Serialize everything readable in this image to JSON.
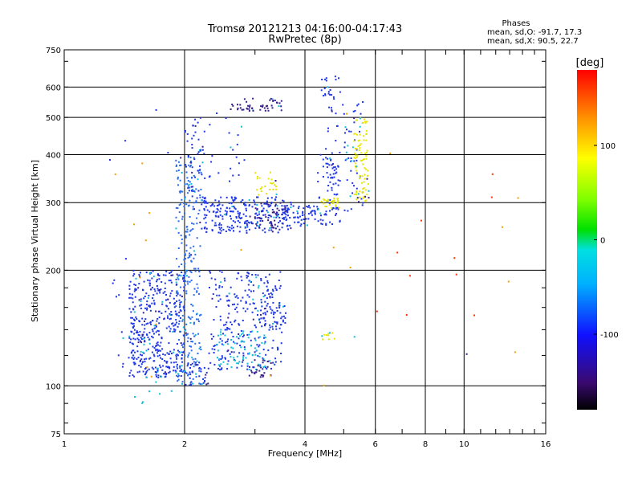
{
  "chart_data": {
    "type": "scatter",
    "title": "Tromsø 20121213 04:16:00-04:17:43",
    "subtitle": "RwPretec (8p)",
    "xlabel": "Frequency [MHz]",
    "ylabel": "Stationary phase Virtual Height [km]",
    "x_scale": "log",
    "y_scale": "log",
    "xlim": [
      1,
      16
    ],
    "ylim": [
      75,
      750
    ],
    "x_ticks": [
      1,
      2,
      4,
      6,
      8,
      10,
      16
    ],
    "y_ticks": [
      75,
      100,
      200,
      300,
      400,
      500,
      600,
      750
    ],
    "x_tick_labels": [
      "1",
      "2",
      "4",
      "6",
      "8",
      "10",
      "16"
    ],
    "y_tick_labels": [
      "75",
      "100",
      "200",
      "300",
      "400",
      "500",
      "600",
      "750"
    ],
    "grid": true,
    "stats": {
      "heading": "Phases",
      "line_o": "mean, sd,O: -91.7, 17.3",
      "line_x": "mean, sd,X:  90.5, 22.7"
    },
    "colorbar": {
      "label": "[deg]",
      "range": [
        -180,
        180
      ],
      "tick_values": [
        100,
        0,
        -100
      ],
      "tick_labels": [
        "100",
        "0",
        "-100"
      ]
    },
    "colors": {
      "deep": "#3a1e8a",
      "blue": "#1f36e6",
      "lightblue": "#2a6cf0",
      "cyan": "#10c0d8",
      "yellow": "#e6e600",
      "orange": "#f0a000",
      "red": "#ff3000"
    },
    "clusters": [
      {
        "f0": 1.45,
        "f1": 2.0,
        "h0": 105,
        "h1": 200,
        "n": 450,
        "c": "blue"
      },
      {
        "f0": 1.9,
        "f1": 2.2,
        "h0": 100,
        "h1": 400,
        "n": 260,
        "c": "lightblue"
      },
      {
        "f0": 2.0,
        "f1": 2.25,
        "h0": 300,
        "h1": 500,
        "n": 50,
        "c": "blue"
      },
      {
        "f0": 2.2,
        "f1": 3.7,
        "h0": 250,
        "h1": 310,
        "n": 260,
        "c": "blue"
      },
      {
        "f0": 3.0,
        "f1": 3.6,
        "h0": 255,
        "h1": 300,
        "n": 50,
        "c": "deep"
      },
      {
        "f0": 3.5,
        "f1": 4.4,
        "h0": 260,
        "h1": 300,
        "n": 70,
        "c": "blue"
      },
      {
        "f0": 4.3,
        "f1": 4.9,
        "h0": 260,
        "h1": 400,
        "n": 60,
        "c": "blue"
      },
      {
        "f0": 4.5,
        "f1": 5.6,
        "h0": 285,
        "h1": 560,
        "n": 80,
        "c": "blue"
      },
      {
        "f0": 5.3,
        "f1": 5.8,
        "h0": 300,
        "h1": 500,
        "n": 90,
        "c": "yellow"
      },
      {
        "f0": 4.4,
        "f1": 4.9,
        "h0": 290,
        "h1": 310,
        "n": 30,
        "c": "yellow"
      },
      {
        "f0": 3.0,
        "f1": 3.5,
        "h0": 310,
        "h1": 360,
        "n": 25,
        "c": "yellow"
      },
      {
        "f0": 2.6,
        "f1": 3.5,
        "h0": 520,
        "h1": 560,
        "n": 50,
        "c": "deep"
      },
      {
        "f0": 2.3,
        "f1": 2.8,
        "h0": 340,
        "h1": 500,
        "n": 18,
        "c": "blue"
      },
      {
        "f0": 4.4,
        "f1": 4.9,
        "h0": 560,
        "h1": 640,
        "n": 20,
        "c": "blue"
      },
      {
        "f0": 2.3,
        "f1": 3.5,
        "h0": 110,
        "h1": 200,
        "n": 250,
        "c": "blue"
      },
      {
        "f0": 2.4,
        "f1": 3.2,
        "h0": 110,
        "h1": 140,
        "n": 70,
        "c": "cyan"
      },
      {
        "f0": 2.9,
        "f1": 3.3,
        "h0": 105,
        "h1": 118,
        "n": 30,
        "c": "deep"
      },
      {
        "f0": 3.1,
        "f1": 3.6,
        "h0": 140,
        "h1": 180,
        "n": 60,
        "c": "blue"
      },
      {
        "f0": 2.0,
        "f1": 2.3,
        "h0": 100,
        "h1": 115,
        "n": 40,
        "c": "blue"
      },
      {
        "f0": 4.4,
        "f1": 4.8,
        "h0": 132,
        "h1": 138,
        "n": 10,
        "c": "yellow"
      },
      {
        "f0": 1.3,
        "f1": 1.5,
        "h0": 105,
        "h1": 240,
        "n": 12,
        "c": "blue"
      },
      {
        "f0": 1.5,
        "f1": 2.0,
        "h0": 90,
        "h1": 110,
        "n": 10,
        "c": "cyan"
      },
      {
        "f0": 1.25,
        "f1": 14.0,
        "h0": 90,
        "h1": 550,
        "n": 22,
        "c": "orange"
      },
      {
        "f0": 6.0,
        "f1": 12.0,
        "h0": 150,
        "h1": 370,
        "n": 10,
        "c": "red"
      },
      {
        "f0": 1.3,
        "f1": 3.0,
        "h0": 380,
        "h1": 560,
        "n": 8,
        "c": "blue"
      }
    ]
  }
}
